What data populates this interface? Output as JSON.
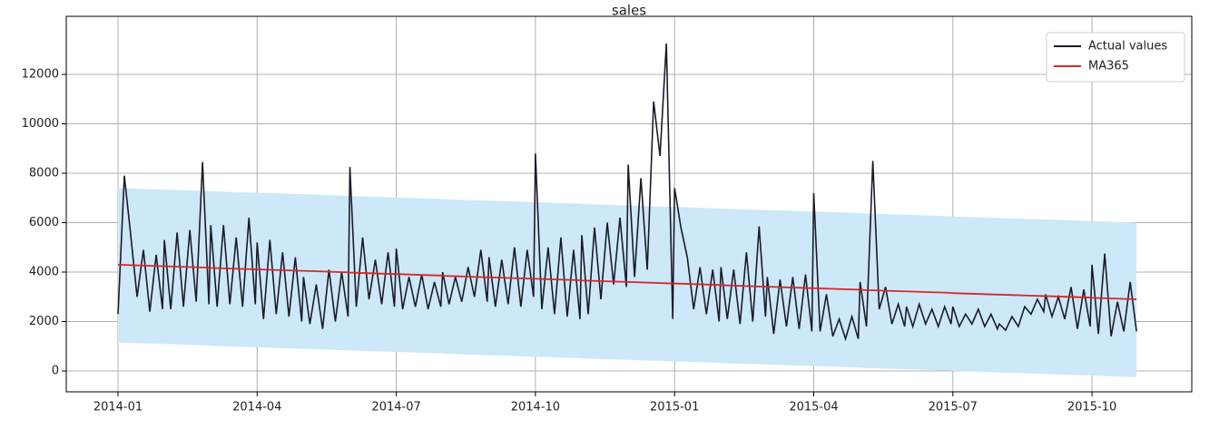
{
  "chart_data": {
    "type": "line",
    "title": "sales",
    "x": [
      "2014-01",
      "2014-02",
      "2014-03",
      "2014-04",
      "2014-05",
      "2014-06",
      "2014-07",
      "2014-08",
      "2014-09",
      "2014-10",
      "2014-11",
      "2014-12",
      "2015-01",
      "2015-02",
      "2015-03",
      "2015-04",
      "2015-05",
      "2015-06",
      "2015-07",
      "2015-08",
      "2015-09",
      "2015-10"
    ],
    "xticks": [
      "2014-01",
      "2014-04",
      "2014-07",
      "2014-10",
      "2015-01",
      "2015-04",
      "2015-07",
      "2015-10"
    ],
    "ylim": [
      -844,
      14350
    ],
    "yticks": [
      0,
      2000,
      4000,
      6000,
      8000,
      10000,
      12000
    ],
    "grid": true,
    "legend": "upper right",
    "band": {
      "color": "#cce8f9",
      "upper": [
        [
          7400,
          7340
        ],
        [
          7340,
          7280
        ],
        [
          7270,
          7210
        ],
        [
          7210,
          7150
        ],
        [
          7150,
          7090
        ],
        [
          7080,
          7020
        ],
        [
          7020,
          6960
        ],
        [
          6950,
          6890
        ],
        [
          6890,
          6830
        ],
        [
          6830,
          6770
        ],
        [
          6760,
          6700
        ],
        [
          6700,
          6640
        ],
        [
          6640,
          6580
        ],
        [
          6570,
          6510
        ],
        [
          6510,
          6450
        ],
        [
          6450,
          6390
        ],
        [
          6380,
          6320
        ],
        [
          6320,
          6260
        ],
        [
          6250,
          6190
        ],
        [
          6190,
          6130
        ],
        [
          6130,
          6070
        ],
        [
          6060,
          6000
        ]
      ],
      "lower": [
        [
          1150,
          1090
        ],
        [
          1090,
          1030
        ],
        [
          1020,
          960
        ],
        [
          960,
          900
        ],
        [
          900,
          840
        ],
        [
          830,
          770
        ],
        [
          770,
          710
        ],
        [
          700,
          640
        ],
        [
          640,
          580
        ],
        [
          580,
          520
        ],
        [
          510,
          450
        ],
        [
          450,
          390
        ],
        [
          390,
          330
        ],
        [
          320,
          260
        ],
        [
          260,
          200
        ],
        [
          200,
          140
        ],
        [
          130,
          70
        ],
        [
          70,
          10
        ],
        [
          0,
          -60
        ],
        [
          -60,
          -120
        ],
        [
          -120,
          -180
        ],
        [
          -190,
          -250
        ]
      ]
    },
    "series": [
      {
        "name": "Actual values",
        "color": "#1b1b2a",
        "values": [
          [
            2300,
            7900,
            5500,
            3000,
            4900,
            2400,
            4700,
            2500
          ],
          [
            5300,
            2500,
            5600,
            2600,
            5700,
            2800,
            8450,
            2700
          ],
          [
            5900,
            2600,
            5900,
            2700,
            5400,
            2600,
            6200,
            2700
          ],
          [
            5200,
            2100,
            5300,
            2300,
            4800,
            2200,
            4600,
            2000
          ],
          [
            3800,
            1900,
            3500,
            1700,
            4100,
            2000,
            4000,
            2200
          ],
          [
            8250,
            2600,
            5400,
            2900,
            4500,
            2700,
            4800,
            2600
          ],
          [
            4950,
            2500,
            3800,
            2600,
            3900,
            2500,
            3600,
            2600
          ],
          [
            4000,
            2700,
            3800,
            2800,
            4200,
            3000,
            4900,
            2800
          ],
          [
            4600,
            2600,
            4500,
            2700,
            5000,
            2600,
            4900,
            3000
          ],
          [
            8800,
            2500,
            5000,
            2300,
            5400,
            2200,
            4900,
            2100
          ],
          [
            5500,
            2300,
            5800,
            2900,
            6000,
            3500,
            6200,
            3400
          ],
          [
            8350,
            3800,
            7800,
            4100,
            10900,
            8700,
            13250,
            2100
          ],
          [
            7400,
            5800,
            4600,
            2500,
            4200,
            2300,
            4100,
            2000
          ],
          [
            4200,
            2100,
            4100,
            1900,
            4800,
            2000,
            5850,
            2200
          ],
          [
            3800,
            1500,
            3700,
            1800,
            3800,
            1700,
            3900,
            1600
          ],
          [
            7200,
            1600,
            3100,
            1400,
            2100,
            1300,
            2200,
            1300
          ],
          [
            3600,
            1800,
            8500,
            2500,
            3400,
            1900,
            2700,
            1800
          ],
          [
            2600,
            1800,
            2700,
            1900,
            2500,
            1800,
            2600,
            1900
          ],
          [
            2600,
            1800,
            2300,
            1900,
            2500,
            1800,
            2300,
            1700
          ],
          [
            1900,
            1650,
            2200,
            1800,
            2600,
            2300,
            2900,
            2400
          ],
          [
            3100,
            2200,
            3000,
            2100,
            3400,
            1700,
            3300,
            1800
          ],
          [
            4300,
            1500,
            4750,
            1400,
            2800,
            1600,
            3600,
            1600
          ]
        ]
      },
      {
        "name": "MA365",
        "color": "#d62728",
        "values": [
          [
            4300,
            4240
          ],
          [
            4240,
            4180
          ],
          [
            4170,
            4110
          ],
          [
            4110,
            4050
          ],
          [
            4050,
            3990
          ],
          [
            3980,
            3920
          ],
          [
            3920,
            3860
          ],
          [
            3850,
            3790
          ],
          [
            3790,
            3730
          ],
          [
            3730,
            3670
          ],
          [
            3660,
            3600
          ],
          [
            3600,
            3540
          ],
          [
            3540,
            3480
          ],
          [
            3470,
            3410
          ],
          [
            3410,
            3350
          ],
          [
            3350,
            3290
          ],
          [
            3280,
            3220
          ],
          [
            3220,
            3160
          ],
          [
            3150,
            3090
          ],
          [
            3090,
            3030
          ],
          [
            3030,
            2970
          ],
          [
            2960,
            2900
          ]
        ]
      }
    ]
  }
}
